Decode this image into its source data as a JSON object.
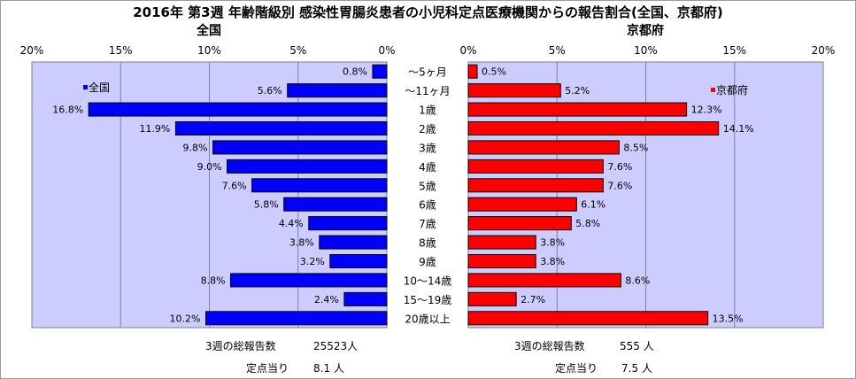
{
  "title": "2016年 第3週 年齢階級別 感染性胃腸炎患者の小児科定点医療機関からの報告割合(全国、京都府)",
  "colors": {
    "left_bar": "#0000ff",
    "right_bar": "#ff0000",
    "plot_bg": "#ccccff"
  },
  "chart_data": [
    {
      "type": "bar",
      "orientation": "horizontal",
      "direction": "right-to-left",
      "title": "全国",
      "legend": "全国",
      "legend_position": "top-left",
      "categories": [
        "～5ヶ月",
        "～11ヶ月",
        "1歳",
        "2歳",
        "3歳",
        "4歳",
        "5歳",
        "6歳",
        "7歳",
        "8歳",
        "9歳",
        "10～14歳",
        "15～19歳",
        "20歳以上"
      ],
      "series": [
        {
          "name": "全国",
          "values": [
            0.8,
            5.6,
            16.8,
            11.9,
            9.8,
            9.0,
            7.6,
            5.8,
            4.4,
            3.8,
            3.2,
            8.8,
            2.4,
            10.2
          ]
        }
      ],
      "data_labels": [
        "0.8%",
        "5.6%",
        "16.8%",
        "11.9%",
        "9.8%",
        "9.0%",
        "7.6%",
        "5.8%",
        "4.4%",
        "3.8%",
        "3.2%",
        "8.8%",
        "2.4%",
        "10.2%"
      ],
      "xlim": [
        0,
        20
      ],
      "ticks": [
        "20%",
        "15%",
        "10%",
        "5%",
        "0%"
      ],
      "grid": true
    },
    {
      "type": "bar",
      "orientation": "horizontal",
      "direction": "left-to-right",
      "title": "京都府",
      "legend": "京都府",
      "legend_position": "top-right",
      "categories": [
        "～5ヶ月",
        "～11ヶ月",
        "1歳",
        "2歳",
        "3歳",
        "4歳",
        "5歳",
        "6歳",
        "7歳",
        "8歳",
        "9歳",
        "10～14歳",
        "15～19歳",
        "20歳以上"
      ],
      "series": [
        {
          "name": "京都府",
          "values": [
            0.5,
            5.2,
            12.3,
            14.1,
            8.5,
            7.6,
            7.6,
            6.1,
            5.8,
            3.8,
            3.8,
            8.6,
            2.7,
            13.5
          ]
        }
      ],
      "data_labels": [
        "0.5%",
        "5.2%",
        "12.3%",
        "14.1%",
        "8.5%",
        "7.6%",
        "7.6%",
        "6.1%",
        "5.8%",
        "3.8%",
        "3.8%",
        "8.6%",
        "2.7%",
        "13.5%"
      ],
      "xlim": [
        0,
        20
      ],
      "ticks": [
        "0%",
        "5%",
        "10%",
        "15%",
        "20%"
      ],
      "grid": true
    }
  ],
  "footer": {
    "left": {
      "total_label": "3週の総報告数",
      "total_value": "25523人",
      "per_label": "定点当り",
      "per_value": "8.1 人"
    },
    "right": {
      "total_label": "3週の総報告数",
      "total_value": "555 人",
      "per_label": "定点当り",
      "per_value": "7.5 人"
    }
  }
}
